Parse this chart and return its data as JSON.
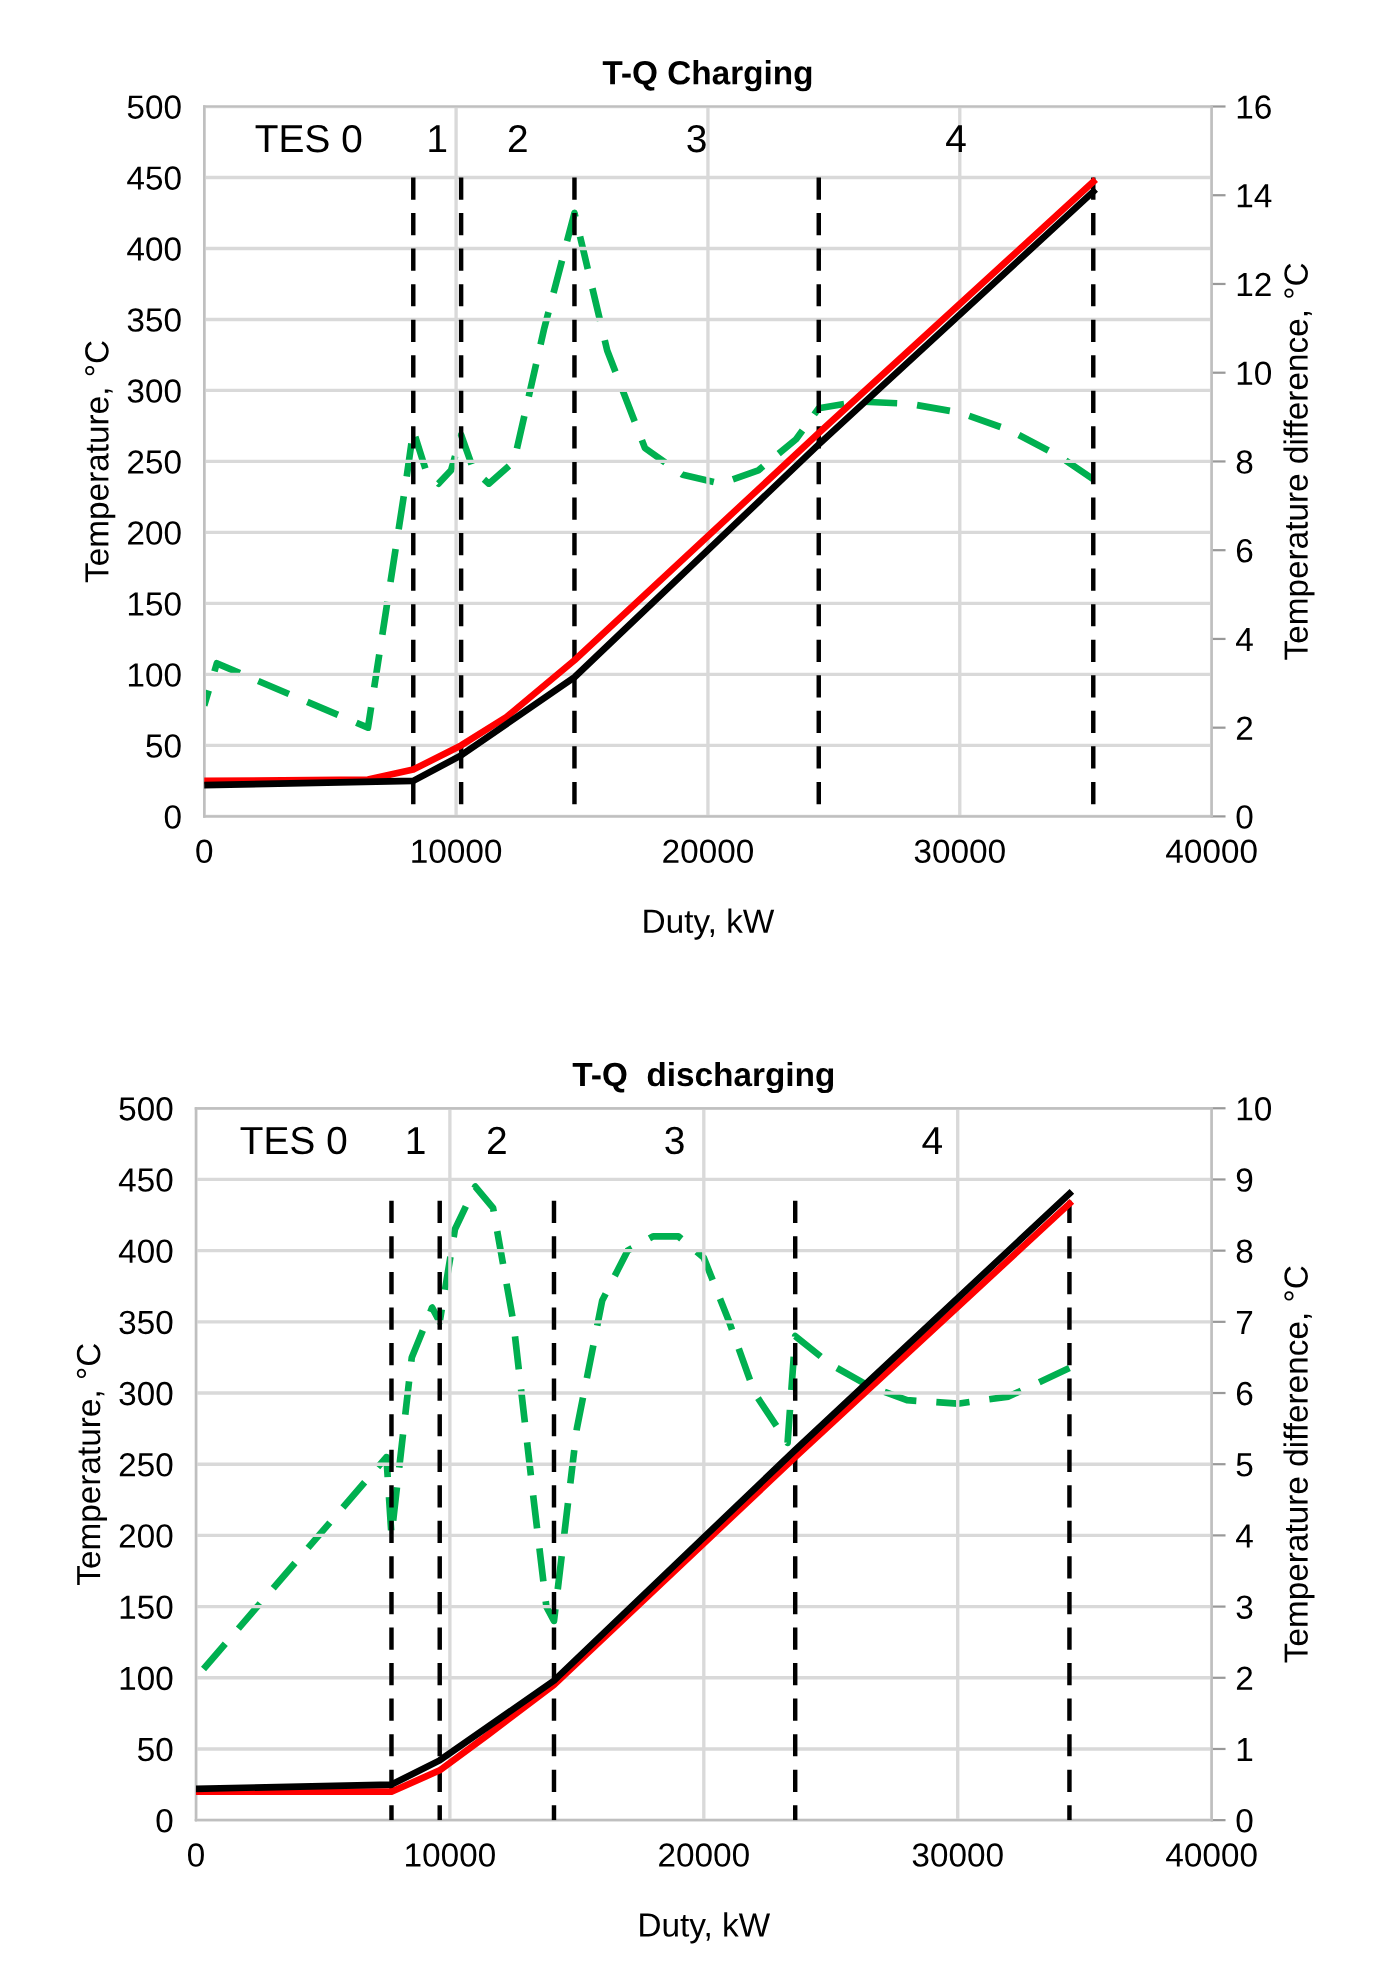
{
  "chart_data": [
    {
      "type": "line",
      "title": "T-Q Charging",
      "xlabel": "Duty, kW",
      "ylabel": "Temperature, °C",
      "y2label": "Temperature difference, °C",
      "xlim": [
        0,
        40000
      ],
      "xticks": [
        0,
        10000,
        20000,
        30000,
        40000
      ],
      "ylim": [
        0,
        500
      ],
      "yticks": [
        0,
        50,
        100,
        150,
        200,
        250,
        300,
        350,
        400,
        450,
        500
      ],
      "y2lim": [
        0,
        16
      ],
      "y2ticks": [
        0,
        2,
        4,
        6,
        8,
        10,
        12,
        14,
        16
      ],
      "grid": true,
      "series": [
        {
          "color": "#000000",
          "line_style": "dashed",
          "x": [
            8300,
            8300
          ],
          "values": [
            0,
            450
          ]
        },
        {
          "color": "#000000",
          "line_style": "dashed",
          "x": [
            10200,
            10200
          ],
          "values": [
            0,
            450
          ]
        },
        {
          "color": "#000000",
          "line_style": "dashed",
          "x": [
            14700,
            14700
          ],
          "values": [
            0,
            450
          ]
        },
        {
          "color": "#000000",
          "line_style": "dashed",
          "x": [
            24400,
            24400
          ],
          "values": [
            0,
            450
          ]
        },
        {
          "color": "#000000",
          "line_style": "dashed",
          "x": [
            35300,
            35300
          ],
          "values": [
            0,
            450
          ]
        },
        {
          "color": "#ff0000",
          "line_style": "solid",
          "x": [
            0,
            6500,
            8300,
            10200,
            12000,
            14700,
            24400,
            35300
          ],
          "values": [
            25,
            26,
            33,
            50,
            70,
            110,
            270,
            447
          ]
        },
        {
          "color": "#000000",
          "line_style": "solid",
          "x": [
            0,
            8300,
            10200,
            14700,
            24400,
            35300
          ],
          "values": [
            22,
            25,
            43,
            98,
            262,
            440
          ]
        },
        {
          "color": "#00b050",
          "line_style": "dashed",
          "axis": "y2",
          "x": [
            0,
            500,
            6500,
            8000,
            8300,
            8800,
            9300,
            9800,
            10200,
            10700,
            11300,
            12300,
            13500,
            14700,
            16000,
            17500,
            19000,
            20500,
            22000,
            23500,
            24400,
            26000,
            28000,
            30000,
            32000,
            34000,
            35300
          ],
          "values": [
            2.5,
            3.45,
            2.0,
            7.5,
            8.7,
            7.8,
            7.5,
            7.8,
            8.6,
            7.8,
            7.5,
            8.0,
            11.0,
            13.6,
            10.5,
            8.3,
            7.7,
            7.5,
            7.8,
            8.5,
            9.2,
            9.35,
            9.3,
            9.1,
            8.7,
            8.1,
            7.6
          ]
        }
      ],
      "annotations": [
        "TES 0",
        "1",
        "2",
        "3",
        "4"
      ]
    },
    {
      "type": "line",
      "title": "T-Q  discharging",
      "xlabel": "Duty, kW",
      "ylabel": "Temperature, °C",
      "y2label": "Temperature difference, °C",
      "xlim": [
        0,
        40000
      ],
      "xticks": [
        0,
        10000,
        20000,
        30000,
        40000
      ],
      "ylim": [
        0,
        500
      ],
      "yticks": [
        0,
        50,
        100,
        150,
        200,
        250,
        300,
        350,
        400,
        450,
        500
      ],
      "y2lim": [
        0,
        10
      ],
      "y2ticks": [
        0,
        1,
        2,
        3,
        4,
        5,
        6,
        7,
        8,
        9,
        10
      ],
      "grid": true,
      "series": [
        {
          "color": "#000000",
          "line_style": "dashed",
          "x": [
            7700,
            7700
          ],
          "values": [
            0,
            435
          ]
        },
        {
          "color": "#000000",
          "line_style": "dashed",
          "x": [
            9600,
            9600
          ],
          "values": [
            0,
            435
          ]
        },
        {
          "color": "#000000",
          "line_style": "dashed",
          "x": [
            14100,
            14100
          ],
          "values": [
            0,
            435
          ]
        },
        {
          "color": "#000000",
          "line_style": "dashed",
          "x": [
            23600,
            23600
          ],
          "values": [
            0,
            435
          ]
        },
        {
          "color": "#000000",
          "line_style": "dashed",
          "x": [
            34400,
            34400
          ],
          "values": [
            0,
            435
          ]
        },
        {
          "color": "#ff0000",
          "line_style": "solid",
          "x": [
            0,
            7700,
            9600,
            11500,
            14100,
            23600,
            34400
          ],
          "values": [
            20,
            20,
            35,
            60,
            95,
            255,
            433
          ]
        },
        {
          "color": "#000000",
          "line_style": "solid",
          "x": [
            0,
            7700,
            9600,
            14100,
            23600,
            34400
          ],
          "values": [
            22,
            25,
            42,
            98,
            260,
            440
          ]
        },
        {
          "color": "#00b050",
          "line_style": "dashed",
          "axis": "y2",
          "x": [
            0,
            7500,
            7700,
            8500,
            9300,
            9600,
            10200,
            11000,
            11700,
            12500,
            13300,
            13800,
            14100,
            15000,
            16000,
            17000,
            18000,
            19000,
            20000,
            21000,
            22000,
            23300,
            23600,
            25000,
            26500,
            28000,
            30000,
            32000,
            34400
          ],
          "values": [
            2.0,
            5.1,
            4.0,
            6.5,
            7.2,
            7.0,
            8.3,
            8.9,
            8.6,
            7.0,
            4.5,
            3.0,
            2.8,
            5.5,
            7.3,
            8.0,
            8.2,
            8.2,
            7.9,
            7.0,
            6.0,
            5.3,
            6.8,
            6.4,
            6.1,
            5.9,
            5.85,
            5.95,
            6.35
          ]
        }
      ],
      "annotations": [
        "TES 0",
        "1",
        "2",
        "3",
        "4"
      ]
    }
  ]
}
